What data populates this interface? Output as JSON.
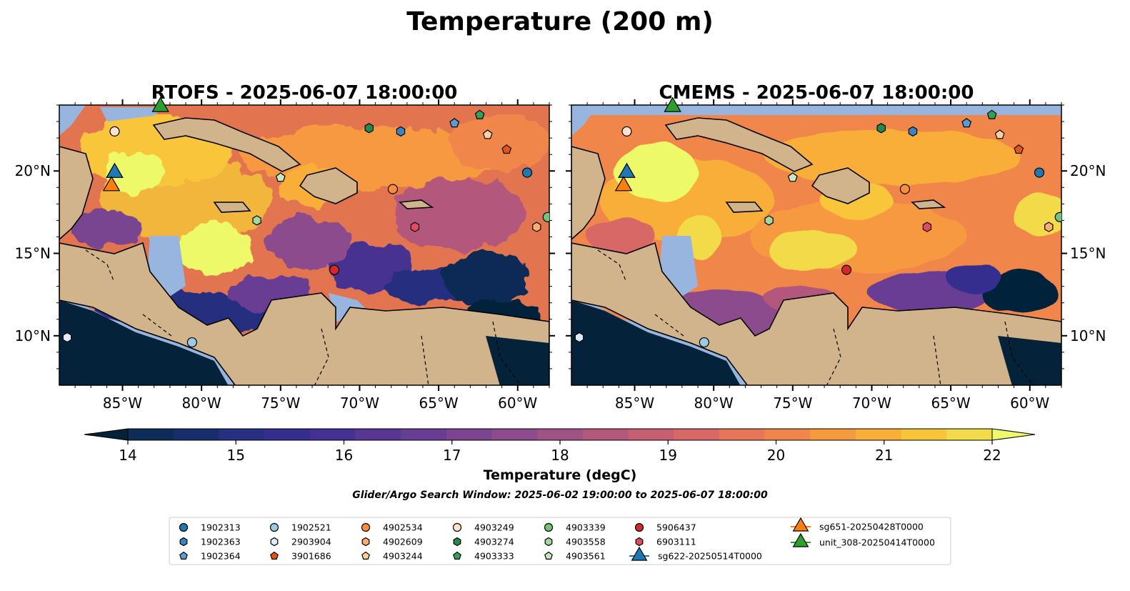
{
  "figure": {
    "title": "Temperature (200 m)",
    "search_window": "Glider/Argo Search Window: 2025-06-02 19:00:00 to 2025-06-07 18:00:00"
  },
  "chart_data": {
    "type": "heatmap",
    "variable": "Temperature (degC)",
    "depth": "200 m",
    "x_range": [
      -89,
      -58
    ],
    "y_range": [
      7,
      24
    ],
    "x_ticks": [
      -85,
      -80,
      -75,
      -70,
      -65,
      -60
    ],
    "x_tick_labels": [
      "85°W",
      "80°W",
      "75°W",
      "70°W",
      "65°W",
      "60°W"
    ],
    "y_ticks": [
      10,
      15,
      20
    ],
    "y_tick_labels": [
      "10°N",
      "15°N",
      "20°N"
    ],
    "panels": [
      {
        "title": "RTOFS - 2025-06-07 18:00:00",
        "model": "RTOFS"
      },
      {
        "title": "CMEMS - 2025-06-07 18:00:00",
        "model": "CMEMS"
      }
    ],
    "colorbar": {
      "label": "Temperature (degC)",
      "min": 14,
      "max": 22,
      "step": 0.5,
      "extend": "both",
      "ticks": [
        14,
        15,
        16,
        17,
        18,
        19,
        20,
        21,
        22
      ],
      "colors": [
        "#04233a",
        "#0c2c57",
        "#182e6c",
        "#262f80",
        "#352e8e",
        "#463092",
        "#573694",
        "#673d93",
        "#7a4490",
        "#8c4b8c",
        "#9f5285",
        "#b3587c",
        "#c65f72",
        "#d86866",
        "#e77659",
        "#f1864b",
        "#f6993f",
        "#f8ae38",
        "#f8c53a",
        "#f2da48",
        "#eef96a"
      ]
    },
    "stations": [
      {
        "name": "1902313",
        "lon": -59.4,
        "lat": 19.9,
        "marker": "circle",
        "color": "#1f77b4"
      },
      {
        "name": "1902363",
        "lon": -67.4,
        "lat": 22.4,
        "marker": "hexagon",
        "color": "#3c83c2"
      },
      {
        "name": "1902364",
        "lon": -64.0,
        "lat": 22.9,
        "marker": "pentagon",
        "color": "#5a9bd5"
      },
      {
        "name": "1902521",
        "lon": -80.6,
        "lat": 9.6,
        "marker": "circle",
        "color": "#9ecae1"
      },
      {
        "name": "2903904",
        "lon": -88.5,
        "lat": 9.9,
        "marker": "hexagon",
        "color": "#deebf7"
      },
      {
        "name": "3901686",
        "lon": -60.7,
        "lat": 21.3,
        "marker": "pentagon",
        "color": "#e6550d"
      },
      {
        "name": "4902534",
        "lon": -67.9,
        "lat": 18.9,
        "marker": "circle",
        "color": "#fd8d3c"
      },
      {
        "name": "4902609",
        "lon": -58.8,
        "lat": 16.6,
        "marker": "hexagon",
        "color": "#fdae6b"
      },
      {
        "name": "4903244",
        "lon": -61.9,
        "lat": 22.2,
        "marker": "pentagon",
        "color": "#fdd0a2"
      },
      {
        "name": "4903249",
        "lon": -85.5,
        "lat": 22.4,
        "marker": "circle",
        "color": "#ffe5c9"
      },
      {
        "name": "4903274",
        "lon": -69.4,
        "lat": 22.6,
        "marker": "hexagon",
        "color": "#238b45"
      },
      {
        "name": "4903333",
        "lon": -62.4,
        "lat": 23.4,
        "marker": "pentagon",
        "color": "#31a354"
      },
      {
        "name": "4903339",
        "lon": -58.1,
        "lat": 17.2,
        "marker": "circle",
        "color": "#74c476"
      },
      {
        "name": "4903558",
        "lon": -76.5,
        "lat": 17.0,
        "marker": "hexagon",
        "color": "#a1d99b"
      },
      {
        "name": "4903561",
        "lon": -75.0,
        "lat": 19.6,
        "marker": "pentagon",
        "color": "#c7e9c0"
      },
      {
        "name": "5906437",
        "lon": -71.6,
        "lat": 14.0,
        "marker": "circle",
        "color": "#d62728"
      },
      {
        "name": "6903111",
        "lon": -66.5,
        "lat": 16.6,
        "marker": "hexagon",
        "color": "#e34a5d"
      }
    ],
    "gliders": [
      {
        "name": "sg622-20250514T0000",
        "lon": -85.5,
        "lat": 19.8,
        "marker": "triangle",
        "color": "#1f77b4"
      },
      {
        "name": "sg651-20250428T0000",
        "lon": -85.7,
        "lat": 19.0,
        "marker": "triangle",
        "color": "#ff7f0e"
      },
      {
        "name": "unit_308-20250414T0000",
        "lon": -82.6,
        "lat": 23.8,
        "marker": "triangle",
        "color": "#2ca02c"
      }
    ]
  }
}
